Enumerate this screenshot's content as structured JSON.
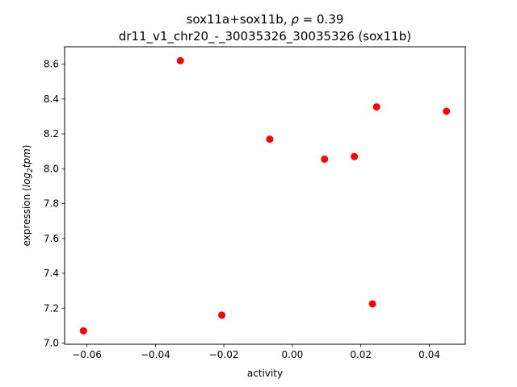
{
  "chart_data": {
    "type": "scatter",
    "title_line1_prefix": "sox11a+sox11b, ",
    "title_rho_symbol": "ρ",
    "title_rho_value": " = 0.39",
    "title_line2": "dr11_v1_chr20_-_30035326_30035326 (sox11b)",
    "xlabel": "activity",
    "ylabel_prefix": "expression (",
    "ylabel_log": "log",
    "ylabel_sub": "2",
    "ylabel_unit": "tpm",
    "ylabel_suffix": ")",
    "xlim": [
      -0.0665,
      0.0505
    ],
    "ylim": [
      6.993,
      8.7
    ],
    "x_ticks": [
      -0.06,
      -0.04,
      -0.02,
      0.0,
      0.02,
      0.04
    ],
    "x_tick_labels": [
      "−0.06",
      "−0.04",
      "−0.02",
      "0.00",
      "0.02",
      "0.04"
    ],
    "y_ticks": [
      7.0,
      7.2,
      7.4,
      7.6,
      7.8,
      8.0,
      8.2,
      8.4,
      8.6
    ],
    "y_tick_labels": [
      "7.0",
      "7.2",
      "7.4",
      "7.6",
      "7.8",
      "8.0",
      "8.2",
      "8.4",
      "8.6"
    ],
    "grid": false,
    "marker_color": "#ff0000",
    "points": [
      {
        "x": -0.061,
        "y": 7.07
      },
      {
        "x": -0.0327,
        "y": 8.62
      },
      {
        "x": -0.0206,
        "y": 7.16
      },
      {
        "x": -0.0066,
        "y": 8.17
      },
      {
        "x": 0.0094,
        "y": 8.055
      },
      {
        "x": 0.0181,
        "y": 8.07
      },
      {
        "x": 0.0234,
        "y": 7.225
      },
      {
        "x": 0.0246,
        "y": 8.355
      },
      {
        "x": 0.045,
        "y": 8.33
      }
    ]
  }
}
